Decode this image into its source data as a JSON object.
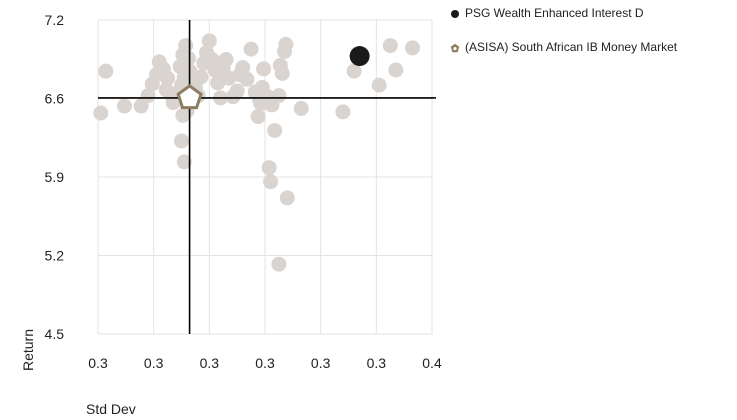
{
  "chart_data": {
    "type": "scatter",
    "title": "",
    "xlabel": "Std Dev",
    "ylabel": "Return",
    "x_tick_labels": [
      "0.3",
      "0.3",
      "0.3",
      "0.3",
      "0.3",
      "0.3",
      "0.4"
    ],
    "y_tick_labels": [
      "4.5",
      "5.2",
      "5.9",
      "6.6",
      "7.2"
    ],
    "xlim": [
      0.28,
      0.4
    ],
    "ylim": [
      4.5,
      7.2
    ],
    "grid": true,
    "legend_position": "top-right",
    "crosshair": {
      "x": 0.3129,
      "y": 6.53
    },
    "series": [
      {
        "name": "Peer funds",
        "color": "#d9d4d0",
        "points": [
          [
            0.2828,
            6.76
          ],
          [
            0.281,
            6.4
          ],
          [
            0.2895,
            6.46
          ],
          [
            0.2955,
            6.46
          ],
          [
            0.298,
            6.55
          ],
          [
            0.2995,
            6.65
          ],
          [
            0.301,
            6.73
          ],
          [
            0.302,
            6.84
          ],
          [
            0.3035,
            6.78
          ],
          [
            0.305,
            6.7
          ],
          [
            0.3045,
            6.6
          ],
          [
            0.3065,
            6.55
          ],
          [
            0.307,
            6.49
          ],
          [
            0.3085,
            6.52
          ],
          [
            0.309,
            6.58
          ],
          [
            0.31,
            6.64
          ],
          [
            0.311,
            6.71
          ],
          [
            0.3095,
            6.8
          ],
          [
            0.3105,
            6.9
          ],
          [
            0.3115,
            6.98
          ],
          [
            0.3125,
            6.87
          ],
          [
            0.313,
            6.76
          ],
          [
            0.314,
            6.68
          ],
          [
            0.315,
            6.62
          ],
          [
            0.312,
            6.42
          ],
          [
            0.3105,
            6.38
          ],
          [
            0.316,
            6.55
          ],
          [
            0.317,
            6.71
          ],
          [
            0.318,
            6.83
          ],
          [
            0.319,
            6.92
          ],
          [
            0.32,
            7.02
          ],
          [
            0.321,
            6.86
          ],
          [
            0.322,
            6.77
          ],
          [
            0.323,
            6.66
          ],
          [
            0.324,
            6.53
          ],
          [
            0.325,
            6.78
          ],
          [
            0.326,
            6.86
          ],
          [
            0.327,
            6.7
          ],
          [
            0.3285,
            6.54
          ],
          [
            0.33,
            6.59
          ],
          [
            0.331,
            6.73
          ],
          [
            0.332,
            6.79
          ],
          [
            0.3335,
            6.69
          ],
          [
            0.335,
            6.95
          ],
          [
            0.3365,
            6.58
          ],
          [
            0.338,
            6.52
          ],
          [
            0.339,
            6.62
          ],
          [
            0.3395,
            6.78
          ],
          [
            0.3375,
            6.37
          ],
          [
            0.3385,
            6.48
          ],
          [
            0.341,
            6.54
          ],
          [
            0.3425,
            6.47
          ],
          [
            0.3435,
            6.25
          ],
          [
            0.345,
            6.55
          ],
          [
            0.3455,
            6.81
          ],
          [
            0.3462,
            6.74
          ],
          [
            0.347,
            6.93
          ],
          [
            0.3475,
            6.99
          ],
          [
            0.353,
            6.44
          ],
          [
            0.368,
            6.41
          ],
          [
            0.372,
            6.76
          ],
          [
            0.381,
            6.64
          ],
          [
            0.385,
            6.98
          ],
          [
            0.387,
            6.77
          ],
          [
            0.393,
            6.96
          ],
          [
            0.31,
            6.16
          ],
          [
            0.311,
            5.98
          ],
          [
            0.3415,
            5.93
          ],
          [
            0.342,
            5.81
          ],
          [
            0.348,
            5.67
          ],
          [
            0.345,
            5.1
          ]
        ]
      },
      {
        "name": "PSG Wealth Enhanced Interest D",
        "color": "#1a1a1a",
        "points": [
          [
            0.374,
            6.89
          ]
        ]
      },
      {
        "name": "(ASISA) South African IB Money Market",
        "color": "#8b7d5e",
        "points": [
          [
            0.3129,
            6.53
          ]
        ]
      }
    ]
  },
  "legend": {
    "items": [
      {
        "label": "PSG Wealth Enhanced Interest D",
        "marker": "circle-icon",
        "color": "#1a1a1a"
      },
      {
        "label": "(ASISA) South African IB Money Market",
        "marker": "pentagon-icon",
        "color": "#8b7d5e"
      }
    ]
  }
}
